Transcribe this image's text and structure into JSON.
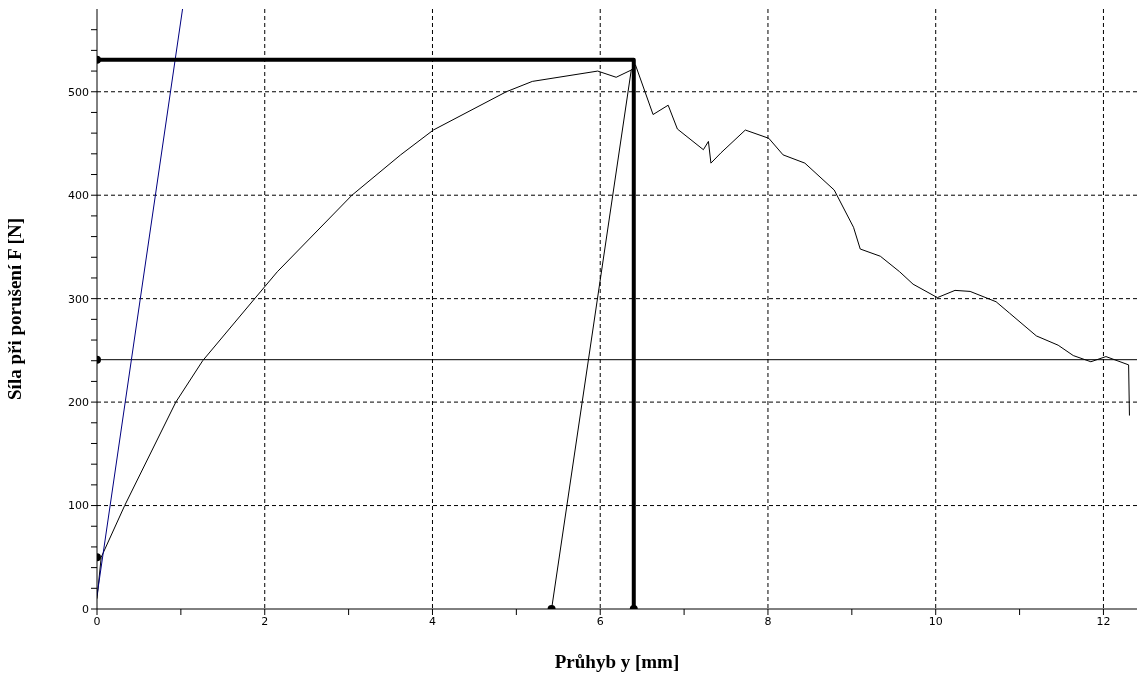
{
  "chart_data": {
    "type": "line",
    "xlabel": "Průhyb y [mm]",
    "ylabel": "Síla při porušení F [N]",
    "xlim": [
      0,
      12.4
    ],
    "ylim": [
      0,
      580
    ],
    "xticks": [
      0,
      {
        "value": 1,
        "label": null
      },
      2,
      {
        "value": 3,
        "label": null
      },
      4,
      {
        "value": 5,
        "label": null
      },
      6,
      {
        "value": 7,
        "label": null
      },
      8,
      {
        "value": 9,
        "label": null
      },
      10,
      {
        "value": 11,
        "label": null
      },
      12
    ],
    "yticks": [
      0,
      {
        "value": 20,
        "label": null
      },
      {
        "value": 40,
        "label": null
      },
      {
        "value": 60,
        "label": null
      },
      {
        "value": 80,
        "label": null
      },
      100,
      {
        "value": 120,
        "label": null
      },
      {
        "value": 140,
        "label": null
      },
      {
        "value": 160,
        "label": null
      },
      {
        "value": 180,
        "label": null
      },
      200,
      {
        "value": 220,
        "label": null
      },
      {
        "value": 240,
        "label": null
      },
      {
        "value": 260,
        "label": null
      },
      {
        "value": 280,
        "label": null
      },
      300,
      {
        "value": 320,
        "label": null
      },
      {
        "value": 340,
        "label": null
      },
      {
        "value": 360,
        "label": null
      },
      {
        "value": 380,
        "label": null
      },
      400,
      {
        "value": 420,
        "label": null
      },
      {
        "value": 440,
        "label": null
      },
      {
        "value": 460,
        "label": null
      },
      {
        "value": 480,
        "label": null
      },
      500,
      {
        "value": 520,
        "label": null
      },
      {
        "value": 540,
        "label": null
      },
      {
        "value": 560,
        "label": null
      }
    ],
    "grid": true,
    "marker": "none",
    "line_style": "solid",
    "ref_lines": [
      {
        "axis": "y",
        "value": 241,
        "color": "#000000"
      }
    ],
    "series": [
      {
        "color": "#000000",
        "x": [
          0,
          0.05,
          0.33,
          0.94,
          1.26,
          1.88,
          2.15,
          3.04,
          3.62,
          4.01,
          4.88,
          5.19,
          5.97,
          6.19,
          6.37,
          6.42,
          6.63,
          6.81,
          6.92,
          7.23,
          7.29,
          7.32,
          7.44,
          7.73,
          8.01,
          8.18,
          8.44,
          8.79,
          9.02,
          9.1,
          9.34,
          9.57,
          9.73,
          10.02,
          10.23,
          10.41,
          10.72,
          10.88,
          11.2,
          11.46,
          11.64,
          11.85,
          12.03,
          12.3,
          12.31
        ],
        "values": [
          10,
          50,
          100,
          200,
          240,
          300,
          326,
          400,
          439,
          463,
          500,
          510,
          520,
          514,
          521,
          526,
          478,
          487,
          464,
          444,
          452,
          431,
          441,
          463,
          455,
          439,
          431,
          405,
          369,
          348,
          341,
          326,
          314,
          301,
          308,
          307,
          297,
          286,
          264,
          255,
          245,
          239,
          244,
          236,
          187
        ]
      },
      {
        "color": "#000080",
        "x": [
          0,
          1.02
        ],
        "values": [
          13,
          580
        ]
      },
      {
        "color": "#000000",
        "x": [
          5.42,
          6.37
        ],
        "values": [
          0,
          521
        ]
      },
      {
        "color": "#000000",
        "x": [
          0,
          6.4,
          6.4
        ],
        "values": [
          531,
          531,
          0
        ]
      },
      {
        "type": "scatter",
        "marker": "circle",
        "color": "#000000",
        "x": [
          0,
          0,
          0,
          5.42,
          6.4
        ],
        "values": [
          531,
          241,
          50,
          0,
          0
        ]
      }
    ]
  }
}
